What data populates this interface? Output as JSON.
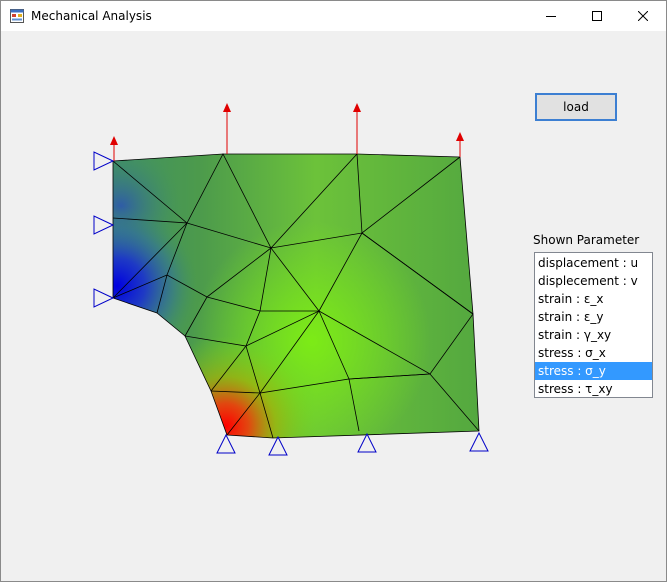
{
  "window": {
    "title": "Mechanical Analysis",
    "icons": {
      "app": "form-icon",
      "minimize": "minimize-icon",
      "maximize": "maximize-icon",
      "close": "close-icon"
    }
  },
  "toolbar": {
    "load_label": "load"
  },
  "parameters": {
    "label": "Shown Parameter",
    "items": [
      {
        "label": "displacement : u",
        "selected": false
      },
      {
        "label": "displecement : v",
        "selected": false
      },
      {
        "label": "strain : ε_x",
        "selected": false
      },
      {
        "label": "strain : ε_y",
        "selected": false
      },
      {
        "label": "strain : γ_xy",
        "selected": false
      },
      {
        "label": "stress : σ_x",
        "selected": false
      },
      {
        "label": "stress : σ_y",
        "selected": true
      },
      {
        "label": "stress : τ_xy",
        "selected": false
      }
    ]
  },
  "colors": {
    "selection": "#3399ff",
    "load_arrow": "#e00000",
    "support": "#0000c8",
    "mesh_line": "#000000",
    "button_focus": "#3c7fd2"
  }
}
